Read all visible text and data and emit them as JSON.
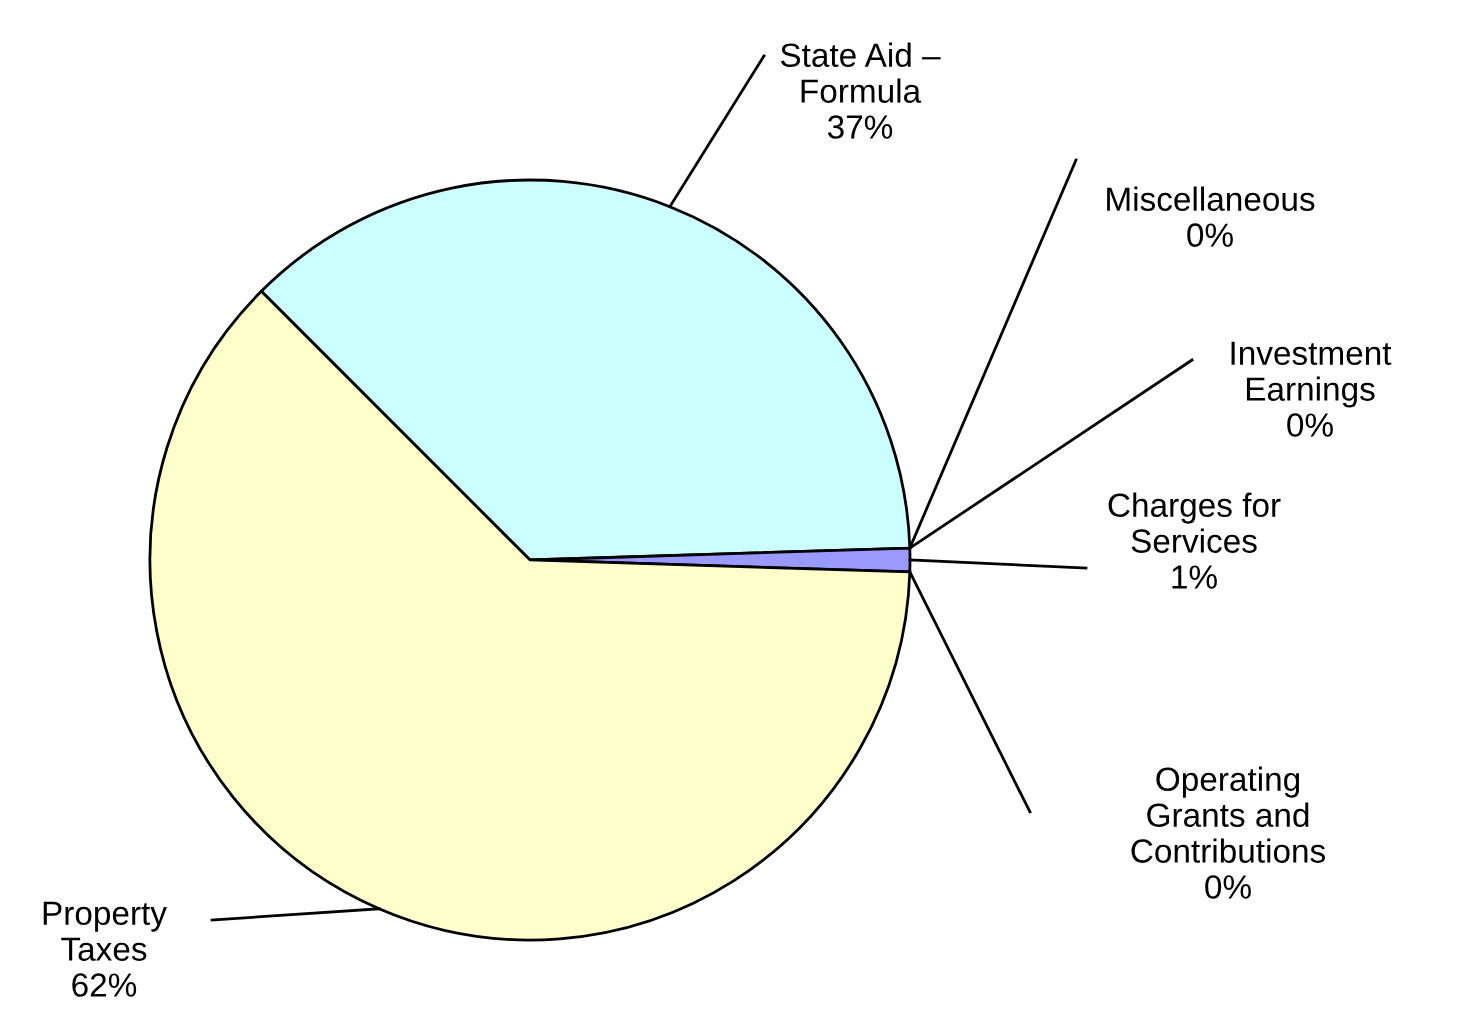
{
  "chart_data": {
    "type": "pie",
    "categories": [
      "State Aid –\nFormula",
      "Miscellaneous",
      "Investment\nEarnings",
      "Charges for\nServices",
      "Operating\nGrants and\nContributions",
      "Property\nTaxes"
    ],
    "values": [
      37,
      0,
      0,
      1,
      0,
      62
    ],
    "colors": [
      "#ccffff",
      "#cc0099",
      "#660066",
      "#9999ff",
      "#3366cc",
      "#ffffcc"
    ],
    "value_labels": [
      "37%",
      "0%",
      "0%",
      "1%",
      "0%",
      "62%"
    ],
    "legend": false
  }
}
